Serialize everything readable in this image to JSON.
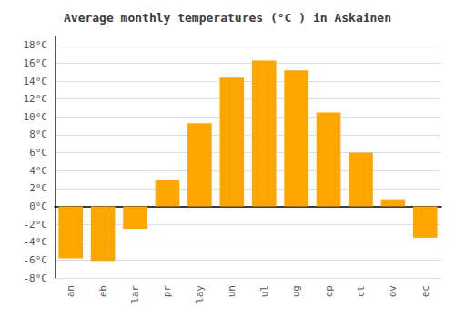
{
  "chart_data": {
    "type": "bar",
    "title": "Average monthly temperatures (°C ) in Askainen",
    "categories": [
      "an",
      "eb",
      "lar",
      "pr",
      "lay",
      "un",
      "ul",
      "ug",
      "ep",
      "ct",
      "ov",
      "ec"
    ],
    "values": [
      -5.8,
      -6.1,
      -2.5,
      3.0,
      9.3,
      14.4,
      16.3,
      15.2,
      10.5,
      6.0,
      0.8,
      -3.5
    ],
    "color": "#FFA500",
    "ylim": [
      -8,
      19
    ],
    "yticks": [
      {
        "value": -8,
        "label": "-8°C"
      },
      {
        "value": -6,
        "label": "-6°C"
      },
      {
        "value": -4,
        "label": "-4°C"
      },
      {
        "value": -2,
        "label": "-2°C"
      },
      {
        "value": 0,
        "label": "0°C"
      },
      {
        "value": 2,
        "label": "2°C"
      },
      {
        "value": 4,
        "label": "4°C"
      },
      {
        "value": 6,
        "label": "6°C"
      },
      {
        "value": 8,
        "label": "8°C"
      },
      {
        "value": 10,
        "label": "10°C"
      },
      {
        "value": 12,
        "label": "12°C"
      },
      {
        "value": 14,
        "label": "14°C"
      },
      {
        "value": 16,
        "label": "16°C"
      },
      {
        "value": 18,
        "label": "18°C"
      }
    ],
    "grid": true
  }
}
